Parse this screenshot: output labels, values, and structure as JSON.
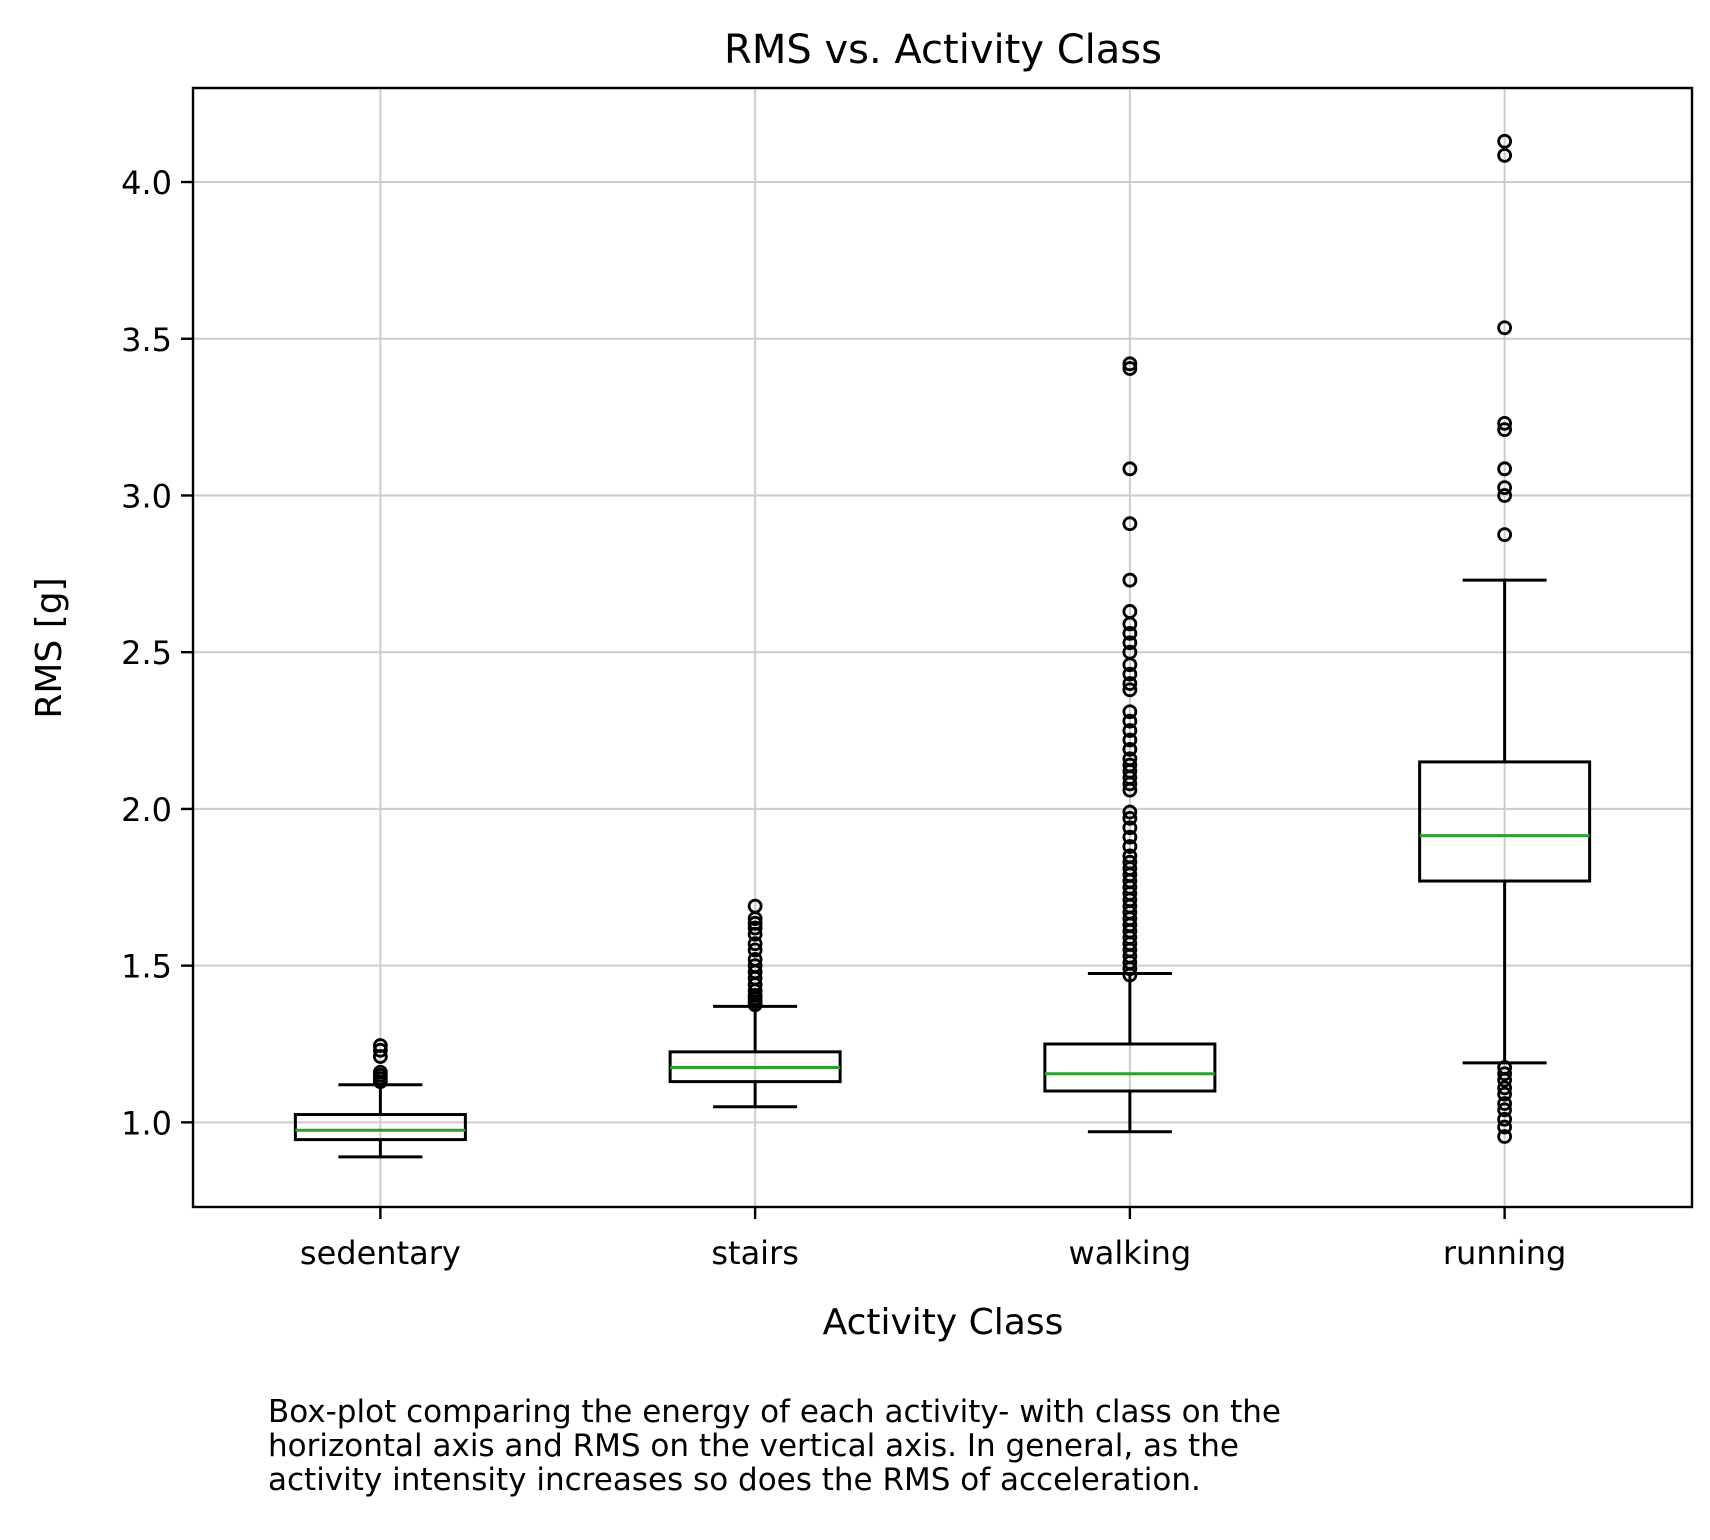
{
  "chart_data": {
    "type": "box",
    "title": "RMS vs. Activity Class",
    "xlabel": "Activity Class",
    "ylabel": "RMS [g]",
    "ylim": [
      0.73,
      4.3
    ],
    "yticks": [
      1.0,
      1.5,
      2.0,
      2.5,
      3.0,
      3.5,
      4.0
    ],
    "ytick_labels": [
      "1.0",
      "1.5",
      "2.0",
      "2.5",
      "3.0",
      "3.5",
      "4.0"
    ],
    "grid": true,
    "colors": {
      "box": "#000000",
      "median": "#2ca02c",
      "grid": "#cccccc"
    },
    "categories": [
      "sedentary",
      "stairs",
      "walking",
      "running"
    ],
    "boxes": [
      {
        "category": "sedentary",
        "whisker_low": 0.89,
        "q1": 0.945,
        "median": 0.975,
        "q3": 1.025,
        "whisker_high": 1.12,
        "outliers": [
          1.13,
          1.14,
          1.15,
          1.16,
          1.21,
          1.23,
          1.245
        ]
      },
      {
        "category": "stairs",
        "whisker_low": 1.05,
        "q1": 1.13,
        "median": 1.175,
        "q3": 1.225,
        "whisker_high": 1.37,
        "outliers": [
          1.375,
          1.385,
          1.395,
          1.405,
          1.42,
          1.44,
          1.46,
          1.48,
          1.5,
          1.52,
          1.55,
          1.57,
          1.6,
          1.62,
          1.635,
          1.65,
          1.69
        ]
      },
      {
        "category": "walking",
        "whisker_low": 0.97,
        "q1": 1.1,
        "median": 1.155,
        "q3": 1.25,
        "whisker_high": 1.475,
        "outliers": [
          1.47,
          1.49,
          1.51,
          1.53,
          1.55,
          1.57,
          1.59,
          1.61,
          1.63,
          1.65,
          1.67,
          1.69,
          1.71,
          1.73,
          1.75,
          1.77,
          1.79,
          1.81,
          1.83,
          1.85,
          1.88,
          1.91,
          1.94,
          1.97,
          1.99,
          2.06,
          2.08,
          2.1,
          2.12,
          2.14,
          2.16,
          2.19,
          2.22,
          2.25,
          2.28,
          2.31,
          2.38,
          2.4,
          2.43,
          2.46,
          2.5,
          2.53,
          2.56,
          2.59,
          2.63,
          2.73,
          2.91,
          3.085,
          3.405,
          3.42
        ]
      },
      {
        "category": "running",
        "whisker_low": 1.19,
        "q1": 1.77,
        "median": 1.915,
        "q3": 2.15,
        "whisker_high": 2.73,
        "outliers": [
          0.955,
          0.985,
          1.01,
          1.04,
          1.06,
          1.09,
          1.11,
          1.135,
          1.155,
          1.175,
          2.875,
          3.0,
          3.025,
          3.085,
          3.21,
          3.23,
          3.535,
          4.085,
          4.13
        ]
      }
    ]
  },
  "caption": "Box-plot comparing the energy of each activity- with class on the\nhorizontal axis and RMS on the vertical axis. In general, as the\nactivity intensity increases so does the RMS of acceleration."
}
